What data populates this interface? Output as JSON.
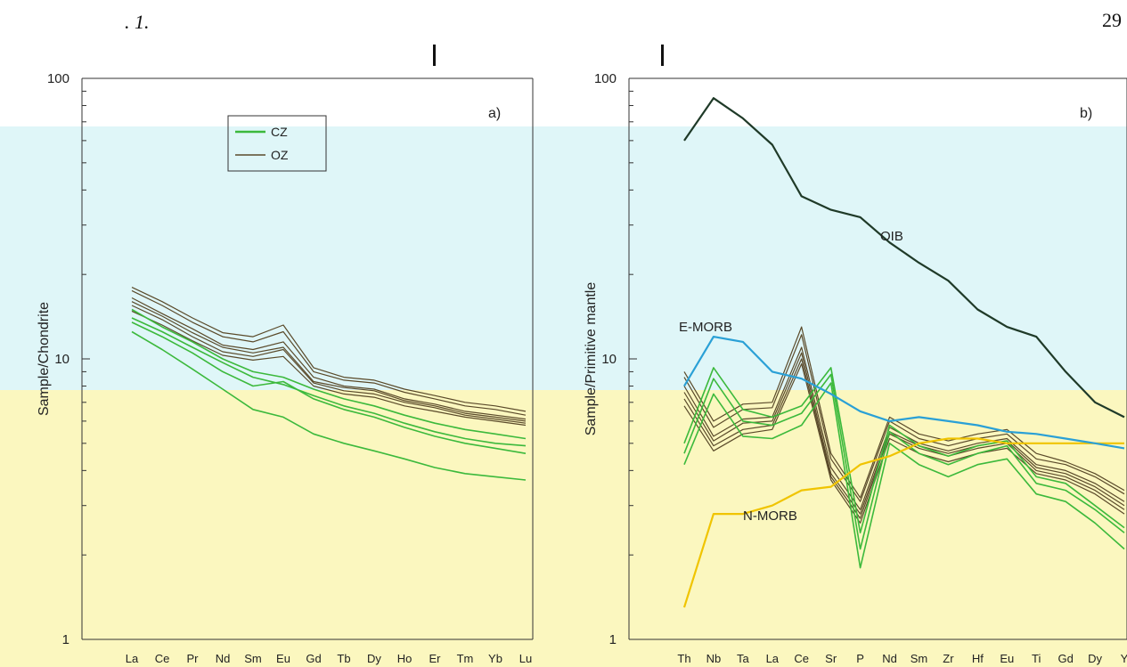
{
  "page": {
    "page_number": "29",
    "header_fragment": ". 1."
  },
  "colors": {
    "band_cyan": "#dff6f8",
    "band_yellow": "#fbf7bf",
    "cz": "#3cb93c",
    "oz": "#5a4a2a",
    "oib": "#1f3a28",
    "emorb": "#2aa0d6",
    "nmorb": "#f0c400"
  },
  "chart_data": [
    {
      "type": "line",
      "panel_label": "a)",
      "ylabel": "Sample/Chondrite",
      "y_scale": "log",
      "ylim": [
        1,
        100
      ],
      "y_ticks": [
        "100",
        "10",
        "1"
      ],
      "categories": [
        "La",
        "Ce",
        "Pr",
        "Nd",
        "Sm",
        "Eu",
        "Gd",
        "Tb",
        "Dy",
        "Ho",
        "Er",
        "Tm",
        "Yb",
        "Lu"
      ],
      "legend": {
        "placement": "top-center",
        "entries": [
          "CZ",
          "OZ"
        ]
      },
      "series": [
        {
          "name": "CZ",
          "values": [
            15,
            13,
            11.5,
            10,
            9,
            8.6,
            7.8,
            7.2,
            6.8,
            6.3,
            5.9,
            5.6,
            5.4,
            5.2
          ]
        },
        {
          "name": "CZ",
          "values": [
            13.5,
            12,
            10.5,
            9,
            8,
            8.3,
            7.2,
            6.6,
            6.2,
            5.7,
            5.3,
            5,
            4.8,
            4.6
          ]
        },
        {
          "name": "CZ",
          "values": [
            12.5,
            10.8,
            9.2,
            7.8,
            6.6,
            6.2,
            5.4,
            5,
            4.7,
            4.4,
            4.1,
            3.9,
            3.8,
            3.7
          ]
        },
        {
          "name": "CZ",
          "values": [
            14,
            12.5,
            11,
            9.7,
            8.6,
            8.1,
            7.4,
            6.8,
            6.4,
            5.9,
            5.5,
            5.2,
            5,
            4.9
          ]
        },
        {
          "name": "OZ",
          "values": [
            17.5,
            15.5,
            13.5,
            12,
            11.5,
            12.5,
            9,
            8.4,
            8.2,
            7.6,
            7.2,
            6.8,
            6.6,
            6.3
          ]
        },
        {
          "name": "OZ",
          "values": [
            16.5,
            14.5,
            12.8,
            11.2,
            10.8,
            11.5,
            8.6,
            8,
            7.8,
            7.2,
            6.9,
            6.5,
            6.3,
            6.1
          ]
        },
        {
          "name": "OZ",
          "values": [
            15.5,
            13.8,
            12,
            10.6,
            10.2,
            10.8,
            8.2,
            7.7,
            7.5,
            7,
            6.7,
            6.3,
            6.1,
            5.9
          ]
        },
        {
          "name": "OZ",
          "values": [
            18,
            16,
            14,
            12.4,
            12,
            13.2,
            9.3,
            8.6,
            8.4,
            7.8,
            7.4,
            7,
            6.8,
            6.5
          ]
        },
        {
          "name": "OZ",
          "values": [
            16,
            14.2,
            12.4,
            11,
            10.5,
            11,
            8.3,
            7.9,
            7.7,
            7.1,
            6.8,
            6.4,
            6.2,
            6
          ]
        },
        {
          "name": "OZ",
          "values": [
            14.8,
            13.2,
            11.6,
            10.3,
            9.9,
            10.2,
            8,
            7.5,
            7.3,
            6.8,
            6.5,
            6.2,
            6,
            5.8
          ]
        }
      ]
    },
    {
      "type": "line",
      "panel_label": "b)",
      "ylabel": "Sample/Primitive mantle",
      "y_scale": "log",
      "ylim": [
        1,
        100
      ],
      "y_ticks": [
        "100",
        "10",
        "1"
      ],
      "categories": [
        "Th",
        "Nb",
        "Ta",
        "La",
        "Ce",
        "Sr",
        "P",
        "Nd",
        "Sm",
        "Zr",
        "Hf",
        "Eu",
        "Ti",
        "Gd",
        "Dy",
        "Y"
      ],
      "annotations": [
        "OIB",
        "E-MORB",
        "N-MORB"
      ],
      "series": [
        {
          "name": "OIB",
          "values": [
            60,
            85,
            72,
            58,
            38,
            34,
            32,
            26,
            22,
            19,
            15,
            13,
            12,
            9,
            7,
            6.2
          ]
        },
        {
          "name": "E-MORB",
          "values": [
            8,
            12,
            11.5,
            9,
            8.5,
            7.5,
            6.5,
            6,
            6.2,
            6,
            5.8,
            5.5,
            5.4,
            5.2,
            5,
            4.8
          ]
        },
        {
          "name": "N-MORB",
          "values": [
            1.3,
            2.8,
            2.8,
            3,
            3.4,
            3.5,
            4.2,
            4.5,
            5,
            5.2,
            5.2,
            5,
            5,
            5,
            5,
            5
          ]
        },
        {
          "name": "CZ",
          "values": [
            4.6,
            8.5,
            6,
            5.8,
            6.4,
            8.8,
            2.1,
            5.5,
            4.6,
            4.2,
            4.6,
            4.9,
            3.6,
            3.4,
            2.9,
            2.4
          ]
        },
        {
          "name": "CZ",
          "values": [
            4.2,
            7.5,
            5.3,
            5.2,
            5.8,
            8.2,
            1.8,
            5,
            4.2,
            3.8,
            4.2,
            4.4,
            3.3,
            3.1,
            2.6,
            2.1
          ]
        },
        {
          "name": "CZ",
          "values": [
            5,
            9.3,
            6.6,
            6.2,
            6.8,
            9.3,
            2.4,
            5.8,
            4.9,
            4.5,
            4.9,
            5.1,
            3.8,
            3.6,
            3,
            2.5
          ]
        },
        {
          "name": "OZ",
          "values": [
            8,
            5.3,
            6.1,
            6.2,
            11,
            4.1,
            2.9,
            5.7,
            5,
            4.7,
            5,
            5.2,
            4.2,
            4,
            3.6,
            3.1
          ]
        },
        {
          "name": "OZ",
          "values": [
            7.2,
            4.9,
            5.6,
            5.8,
            10,
            3.8,
            2.7,
            5.4,
            4.8,
            4.5,
            4.8,
            5,
            4,
            3.8,
            3.4,
            2.9
          ]
        },
        {
          "name": "OZ",
          "values": [
            8.6,
            5.7,
            6.6,
            6.7,
            12.2,
            4.4,
            3.1,
            6,
            5.2,
            4.9,
            5.2,
            5.4,
            4.4,
            4.2,
            3.8,
            3.3
          ]
        },
        {
          "name": "OZ",
          "values": [
            7.6,
            5.1,
            5.9,
            6,
            10.5,
            3.9,
            2.8,
            5.5,
            4.9,
            4.6,
            4.9,
            5.1,
            4.1,
            3.9,
            3.5,
            3
          ]
        },
        {
          "name": "OZ",
          "values": [
            9,
            6,
            6.9,
            7,
            13,
            4.6,
            3.2,
            6.2,
            5.4,
            5.1,
            5.4,
            5.6,
            4.6,
            4.3,
            3.9,
            3.4
          ]
        },
        {
          "name": "OZ",
          "values": [
            6.8,
            4.7,
            5.4,
            5.6,
            9.6,
            3.7,
            2.6,
            5.2,
            4.6,
            4.3,
            4.6,
            4.8,
            3.9,
            3.7,
            3.3,
            2.8
          ]
        }
      ]
    }
  ]
}
